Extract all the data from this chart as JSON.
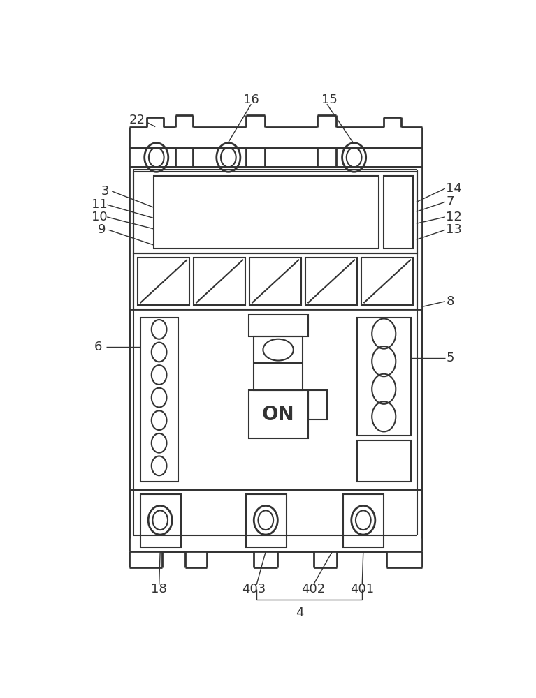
{
  "bg_color": "#ffffff",
  "line_color": "#333333",
  "lw_heavy": 2.0,
  "lw_med": 1.5,
  "lw_light": 1.2,
  "fig_width": 7.67,
  "fig_height": 10.0,
  "font_size": 13
}
